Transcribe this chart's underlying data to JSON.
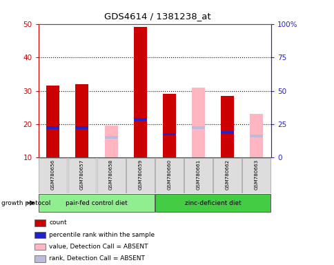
{
  "title": "GDS4614 / 1381238_at",
  "samples": [
    "GSM780656",
    "GSM780657",
    "GSM780658",
    "GSM780659",
    "GSM780660",
    "GSM780661",
    "GSM780662",
    "GSM780663"
  ],
  "groups": [
    {
      "label": "pair-fed control diet",
      "samples": [
        0,
        1,
        2,
        3
      ],
      "color": "#90EE90"
    },
    {
      "label": "zinc-deficient diet",
      "samples": [
        4,
        5,
        6,
        7
      ],
      "color": "#44CC44"
    }
  ],
  "group_label": "growth protocol",
  "ylim_left": [
    10,
    50
  ],
  "ylim_right": [
    0,
    100
  ],
  "yticks_left": [
    10,
    20,
    30,
    40,
    50
  ],
  "yticks_right": [
    0,
    25,
    50,
    75,
    100
  ],
  "yticklabels_right": [
    "0",
    "25",
    "50",
    "75",
    "100%"
  ],
  "bar_bottom": 10,
  "bar_width": 0.45,
  "red_bars": [
    31.5,
    32.0,
    0.0,
    49.0,
    29.0,
    0.0,
    28.5,
    0.0
  ],
  "pink_bars": [
    0.0,
    0.0,
    19.5,
    0.0,
    0.0,
    31.0,
    0.0,
    23.0
  ],
  "blue_segments": [
    19.0,
    19.0,
    0.0,
    21.5,
    17.0,
    0.0,
    17.5,
    0.0
  ],
  "lightblue_segments": [
    0.0,
    0.0,
    16.0,
    0.0,
    0.0,
    19.0,
    0.0,
    16.5
  ],
  "red_color": "#CC0000",
  "pink_color": "#FFB6C1",
  "blue_color": "#2222CC",
  "lightblue_color": "#BBBBDD",
  "legend_items": [
    {
      "label": "count",
      "color": "#CC0000"
    },
    {
      "label": "percentile rank within the sample",
      "color": "#2222CC"
    },
    {
      "label": "value, Detection Call = ABSENT",
      "color": "#FFB6C1"
    },
    {
      "label": "rank, Detection Call = ABSENT",
      "color": "#BBBBDD"
    }
  ],
  "left_axis_color": "#CC0000",
  "right_axis_color": "#2222CC"
}
